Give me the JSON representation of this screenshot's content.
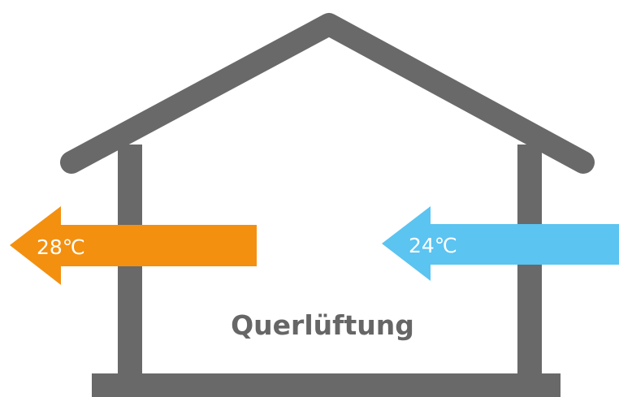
{
  "labels": {
    "outflow_temperature": "28℃",
    "inflow_temperature": "24℃",
    "caption": "Querlüftung"
  }
}
